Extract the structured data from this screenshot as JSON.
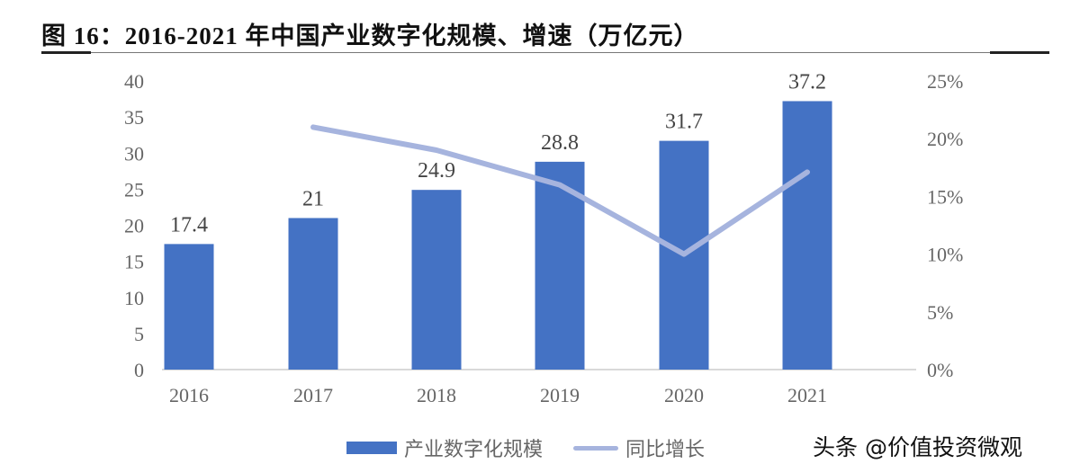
{
  "title": "图 16：2016-2021 年中国产业数字化规模、增速（万亿元）",
  "watermark": "头条 @价值投资微观",
  "legend": {
    "bar_label": "产业数字化规模",
    "line_label": "同比增长"
  },
  "colors": {
    "bar": "#4472C4",
    "line": "#A6B4DE",
    "axis_text": "#666666"
  },
  "chart_data": {
    "type": "bar+line",
    "title": "图 16：2016-2021 年中国产业数字化规模、增速（万亿元）",
    "categories": [
      "2016",
      "2017",
      "2018",
      "2019",
      "2020",
      "2021"
    ],
    "series": [
      {
        "name": "产业数字化规模",
        "type": "bar",
        "axis": "left",
        "values": [
          17.4,
          21,
          24.9,
          28.8,
          31.7,
          37.2
        ],
        "data_labels": [
          "17.4",
          "21",
          "24.9",
          "28.8",
          "31.7",
          "37.2"
        ]
      },
      {
        "name": "同比增长",
        "type": "line",
        "axis": "right",
        "values": [
          null,
          21.0,
          19.0,
          16.0,
          10.0,
          17.1
        ],
        "unit": "%"
      }
    ],
    "y_left": {
      "ticks": [
        "0",
        "5",
        "10",
        "15",
        "20",
        "25",
        "30",
        "35",
        "40"
      ],
      "ylim": [
        0,
        40
      ]
    },
    "y_right": {
      "ticks": [
        "0%",
        "5%",
        "10%",
        "15%",
        "20%",
        "25%"
      ],
      "ylim": [
        0,
        25
      ]
    },
    "xlabel": "",
    "ylabel": "",
    "grid": false,
    "legend_position": "bottom"
  }
}
